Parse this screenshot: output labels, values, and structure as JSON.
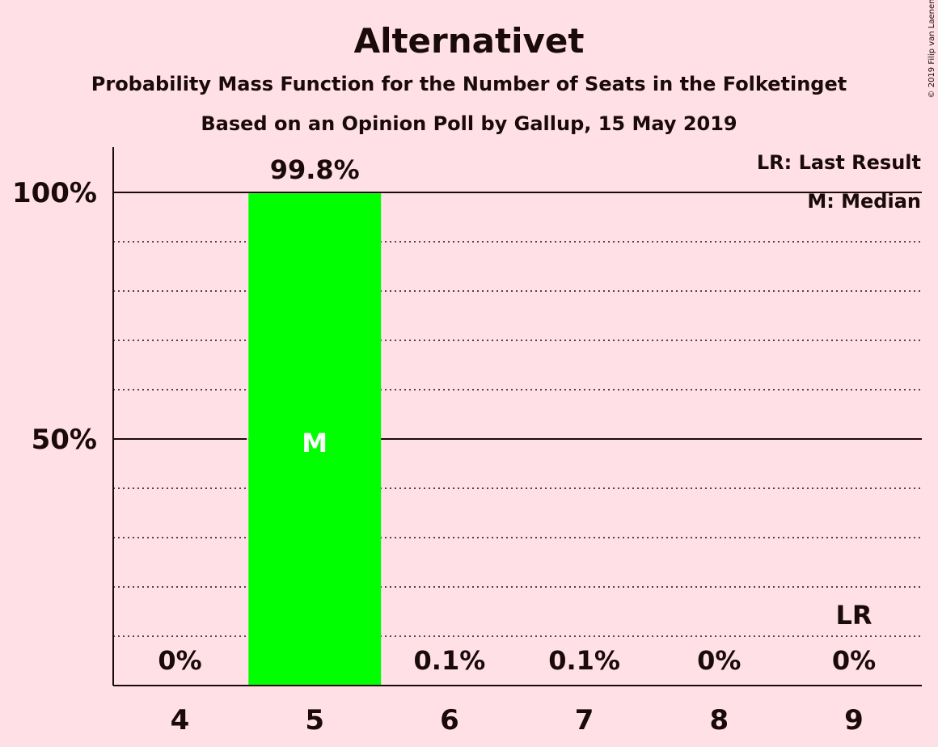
{
  "chart_data": {
    "type": "bar",
    "title": "Alternativet",
    "subtitle": "Probability Mass Function for the Number of Seats in the Folketinget",
    "subtitle2": "Based on an Opinion Poll by Gallup, 15 May 2019",
    "copyright": "© 2019 Filip van Laenen",
    "categories": [
      "4",
      "5",
      "6",
      "7",
      "8",
      "9"
    ],
    "values": [
      0,
      99.8,
      0.1,
      0.1,
      0,
      0
    ],
    "value_labels": [
      "0%",
      "99.8%",
      "0.1%",
      "0.1%",
      "0%",
      "0%"
    ],
    "ylim": [
      0,
      110
    ],
    "yticks": [
      {
        "value": 50,
        "label": "50%"
      },
      {
        "value": 100,
        "label": "100%"
      }
    ],
    "minor_grid": [
      10,
      20,
      30,
      40,
      60,
      70,
      80,
      90
    ],
    "median_category": "5",
    "median_marker": "M",
    "last_result_category": "9",
    "last_result_marker": "LR",
    "legend": [
      "LR: Last Result",
      "M: Median"
    ],
    "legend_position": "top-right",
    "colors": {
      "bar": "#00FF00",
      "background": "#FFE0E6",
      "text": "#1a0a0a",
      "median_text": "#FFFFFF"
    }
  }
}
